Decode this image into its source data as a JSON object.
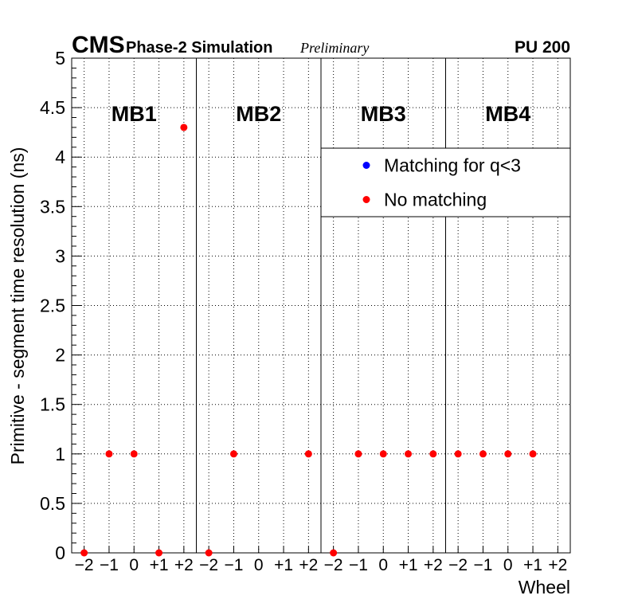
{
  "header": {
    "experiment": "CMS",
    "simulation": "Phase-2 Simulation",
    "preliminary": "Preliminary",
    "pileup": "PU 200"
  },
  "chart_data": {
    "type": "scatter",
    "title": "",
    "xlabel": "Wheel",
    "ylabel": "Primitive - segment time resolution (ns)",
    "ylim": [
      0,
      5
    ],
    "y_ticks": [
      "0",
      "0.5",
      "1",
      "1.5",
      "2",
      "2.5",
      "3",
      "3.5",
      "4",
      "4.5",
      "5"
    ],
    "sections": [
      "MB1",
      "MB2",
      "MB3",
      "MB4"
    ],
    "wheel_labels": [
      "−2",
      "−1",
      "0",
      "+1",
      "+2"
    ],
    "grid": true,
    "legend": {
      "position": "top-right",
      "entries": [
        {
          "label": "Matching for q<3",
          "color": "#0000ff"
        },
        {
          "label": "No matching",
          "color": "#ff0000"
        }
      ]
    },
    "series": [
      {
        "name": "Matching for q<3",
        "color": "#0000ff",
        "marker": "circle",
        "points": []
      },
      {
        "name": "No matching",
        "color": "#ff0000",
        "marker": "circle",
        "points": [
          {
            "mb": "MB1",
            "wheel": "−2",
            "value": 0
          },
          {
            "mb": "MB1",
            "wheel": "−1",
            "value": 1
          },
          {
            "mb": "MB1",
            "wheel": "0",
            "value": 1
          },
          {
            "mb": "MB1",
            "wheel": "+1",
            "value": 0
          },
          {
            "mb": "MB1",
            "wheel": "+2",
            "value": 4.3
          },
          {
            "mb": "MB2",
            "wheel": "−2",
            "value": 0
          },
          {
            "mb": "MB2",
            "wheel": "−1",
            "value": 1
          },
          {
            "mb": "MB2",
            "wheel": "+2",
            "value": 1
          },
          {
            "mb": "MB3",
            "wheel": "−2",
            "value": 0
          },
          {
            "mb": "MB3",
            "wheel": "−1",
            "value": 1
          },
          {
            "mb": "MB3",
            "wheel": "0",
            "value": 1
          },
          {
            "mb": "MB3",
            "wheel": "+1",
            "value": 1
          },
          {
            "mb": "MB3",
            "wheel": "+2",
            "value": 1
          },
          {
            "mb": "MB4",
            "wheel": "−2",
            "value": 1
          },
          {
            "mb": "MB4",
            "wheel": "−1",
            "value": 1
          },
          {
            "mb": "MB4",
            "wheel": "0",
            "value": 1
          },
          {
            "mb": "MB4",
            "wheel": "+1",
            "value": 1
          }
        ]
      }
    ]
  }
}
